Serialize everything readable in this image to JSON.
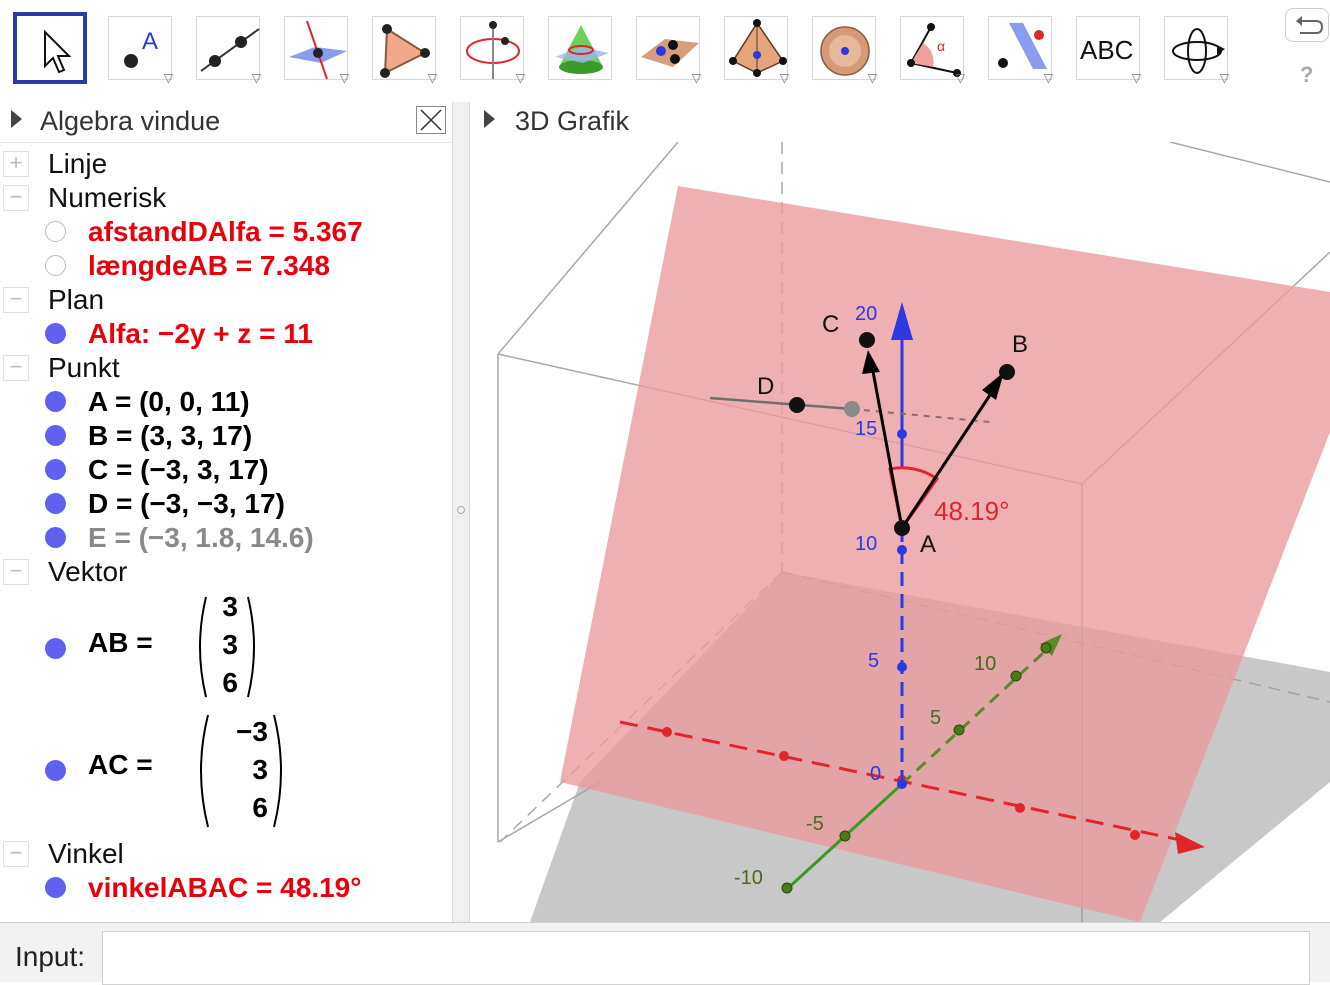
{
  "toolbar": {
    "tools": [
      "move-tool",
      "point-tool",
      "line-tool",
      "perpendicular-line-tool",
      "polygon-tool",
      "circle-tool",
      "cone-tool",
      "plane-through-points-tool",
      "pyramid-tool",
      "sphere-tool",
      "angle-tool",
      "reflect-tool",
      "text-tool",
      "rotate-view-tool"
    ],
    "text_tool_label": "ABC",
    "help_label": "?"
  },
  "algebra": {
    "header": "Algebra vindue",
    "groups": {
      "linje": "Linje",
      "numerisk": "Numerisk",
      "plan": "Plan",
      "punkt": "Punkt",
      "vektor": "Vektor",
      "vinkel": "Vinkel"
    },
    "items": {
      "afstand": "afstandDAlfa = 5.367",
      "laengde": "længdeAB = 7.348",
      "alfa": "Alfa: −2y + z = 11",
      "A": "A = (0, 0, 11)",
      "B": "B = (3, 3, 17)",
      "C": "C = (−3, 3, 17)",
      "D": "D = (−3, −3, 17)",
      "E": "E = (−3, 1.8, 14.6)",
      "vinkel": "vinkelABAC = 48.19°"
    },
    "vectors": {
      "AB": {
        "name": "AB  =",
        "values": [
          "3",
          "3",
          "6"
        ]
      },
      "AC": {
        "name": "AC  =",
        "values": [
          "−3",
          "3",
          "6"
        ]
      }
    }
  },
  "graphics": {
    "header": "3D Grafik",
    "point_labels": {
      "A": "A",
      "B": "B",
      "C": "C",
      "D": "D"
    },
    "angle_label": "48.19°",
    "z_ticks": [
      "20",
      "15",
      "10",
      "5",
      "0"
    ],
    "y_ticks": [
      "10",
      "5",
      "-5",
      "-10"
    ],
    "colors": {
      "plane": "#ea9a9e",
      "x_axis": "#e0262b",
      "y_axis": "#3f8f1e",
      "z_axis": "#2c39e0",
      "angle": "#e0262b"
    }
  },
  "input": {
    "label": "Input:",
    "value": ""
  }
}
